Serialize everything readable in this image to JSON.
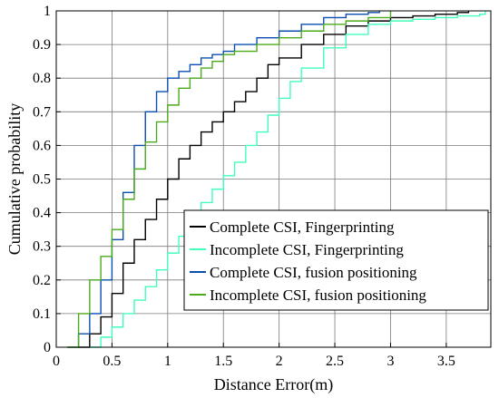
{
  "chart_data": {
    "type": "line",
    "xlabel": "Distance Error(m)",
    "ylabel": "Cumulative probability",
    "xlim": [
      0,
      3.9
    ],
    "ylim": [
      0,
      1
    ],
    "xticks": [
      0,
      0.5,
      1,
      1.5,
      2,
      2.5,
      3,
      3.5
    ],
    "xtick_labels": [
      "0",
      "0.5",
      "1",
      "1.5",
      "2",
      "2.5",
      "3",
      "3.5"
    ],
    "yticks": [
      0,
      0.1,
      0.2,
      0.3,
      0.4,
      0.5,
      0.6,
      0.7,
      0.8,
      0.9,
      1
    ],
    "ytick_labels": [
      "0",
      "0.1",
      "0.2",
      "0.3",
      "0.4",
      "0.5",
      "0.6",
      "0.7",
      "0.8",
      "0.9",
      "1"
    ],
    "grid": true,
    "legend_position": "bottom-right",
    "step": true,
    "series": [
      {
        "name": "Complete CSI, Fingerprinting",
        "color": "#000000",
        "x": [
          0.2,
          0.3,
          0.4,
          0.5,
          0.6,
          0.7,
          0.8,
          0.9,
          1.0,
          1.1,
          1.2,
          1.3,
          1.4,
          1.5,
          1.6,
          1.7,
          1.8,
          1.9,
          2.0,
          2.2,
          2.4,
          2.6,
          2.8,
          3.0,
          3.2,
          3.4,
          3.6,
          3.7
        ],
        "y": [
          0.0,
          0.04,
          0.09,
          0.16,
          0.25,
          0.32,
          0.38,
          0.44,
          0.5,
          0.56,
          0.6,
          0.64,
          0.67,
          0.7,
          0.73,
          0.76,
          0.8,
          0.84,
          0.86,
          0.9,
          0.93,
          0.955,
          0.97,
          0.98,
          0.985,
          0.99,
          0.995,
          1.0
        ]
      },
      {
        "name": "Incomplete CSI, Fingerprinting",
        "color": "#40ffb8",
        "x": [
          0.3,
          0.4,
          0.5,
          0.6,
          0.7,
          0.8,
          0.9,
          1.0,
          1.1,
          1.2,
          1.3,
          1.4,
          1.5,
          1.6,
          1.7,
          1.8,
          1.9,
          2.0,
          2.1,
          2.2,
          2.4,
          2.6,
          2.8,
          3.0,
          3.2,
          3.4,
          3.6,
          3.8,
          3.85
        ],
        "y": [
          0.0,
          0.03,
          0.06,
          0.1,
          0.14,
          0.18,
          0.23,
          0.28,
          0.33,
          0.38,
          0.43,
          0.47,
          0.51,
          0.55,
          0.6,
          0.64,
          0.69,
          0.74,
          0.79,
          0.83,
          0.89,
          0.93,
          0.96,
          0.97,
          0.975,
          0.98,
          0.985,
          0.99,
          1.0
        ]
      },
      {
        "name": "Complete CSI, fusion positioning",
        "color": "#0a4fb0",
        "x": [
          0.1,
          0.2,
          0.3,
          0.4,
          0.5,
          0.6,
          0.7,
          0.8,
          0.9,
          1.0,
          1.1,
          1.2,
          1.3,
          1.4,
          1.5,
          1.6,
          1.8,
          2.0,
          2.2,
          2.4,
          2.6,
          2.8,
          2.9
        ],
        "y": [
          0.0,
          0.04,
          0.1,
          0.2,
          0.32,
          0.46,
          0.6,
          0.7,
          0.76,
          0.8,
          0.82,
          0.84,
          0.86,
          0.87,
          0.88,
          0.9,
          0.92,
          0.94,
          0.96,
          0.98,
          0.99,
          0.995,
          1.0
        ]
      },
      {
        "name": "Incomplete CSI, fusion positioning",
        "color": "#4bab1a",
        "x": [
          0.1,
          0.2,
          0.3,
          0.4,
          0.5,
          0.6,
          0.7,
          0.8,
          0.9,
          1.0,
          1.1,
          1.2,
          1.3,
          1.4,
          1.5,
          1.6,
          1.8,
          2.0,
          2.2,
          2.4,
          2.6,
          2.8,
          3.0
        ],
        "y": [
          0.0,
          0.1,
          0.2,
          0.27,
          0.35,
          0.44,
          0.53,
          0.61,
          0.67,
          0.72,
          0.77,
          0.8,
          0.83,
          0.85,
          0.87,
          0.88,
          0.9,
          0.92,
          0.94,
          0.96,
          0.97,
          0.98,
          1.0
        ]
      }
    ]
  }
}
